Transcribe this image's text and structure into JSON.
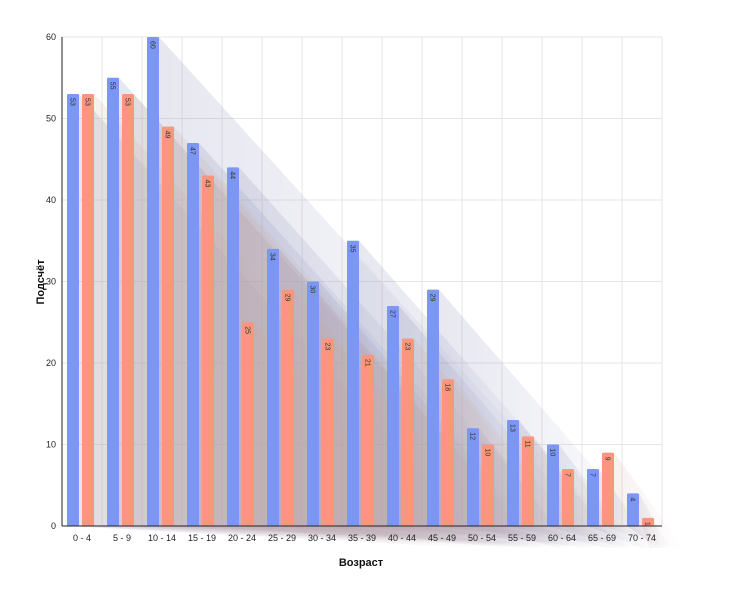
{
  "chart_data": {
    "type": "bar",
    "title": "",
    "xlabel": "Возраст",
    "ylabel": "Подсчёт",
    "ylim": [
      0,
      60
    ],
    "yticks": [
      0,
      10,
      20,
      30,
      40,
      50,
      60
    ],
    "grid": true,
    "categories": [
      "0 - 4",
      "5 - 9",
      "10 - 14",
      "15 - 19",
      "20 - 24",
      "25 - 29",
      "30 - 34",
      "35 - 39",
      "40 - 44",
      "45 - 49",
      "50 - 54",
      "55 - 59",
      "60 - 64",
      "65 - 69",
      "70 - 74"
    ],
    "series": [
      {
        "values": [
          53,
          55,
          60,
          47,
          44,
          34,
          30,
          35,
          27,
          29,
          12,
          13,
          10,
          7,
          4
        ],
        "color": "#7b96f5"
      },
      {
        "values": [
          53,
          53,
          49,
          43,
          25,
          29,
          23,
          21,
          23,
          18,
          10,
          11,
          7,
          9,
          1
        ],
        "color": "#f9967d"
      }
    ]
  }
}
